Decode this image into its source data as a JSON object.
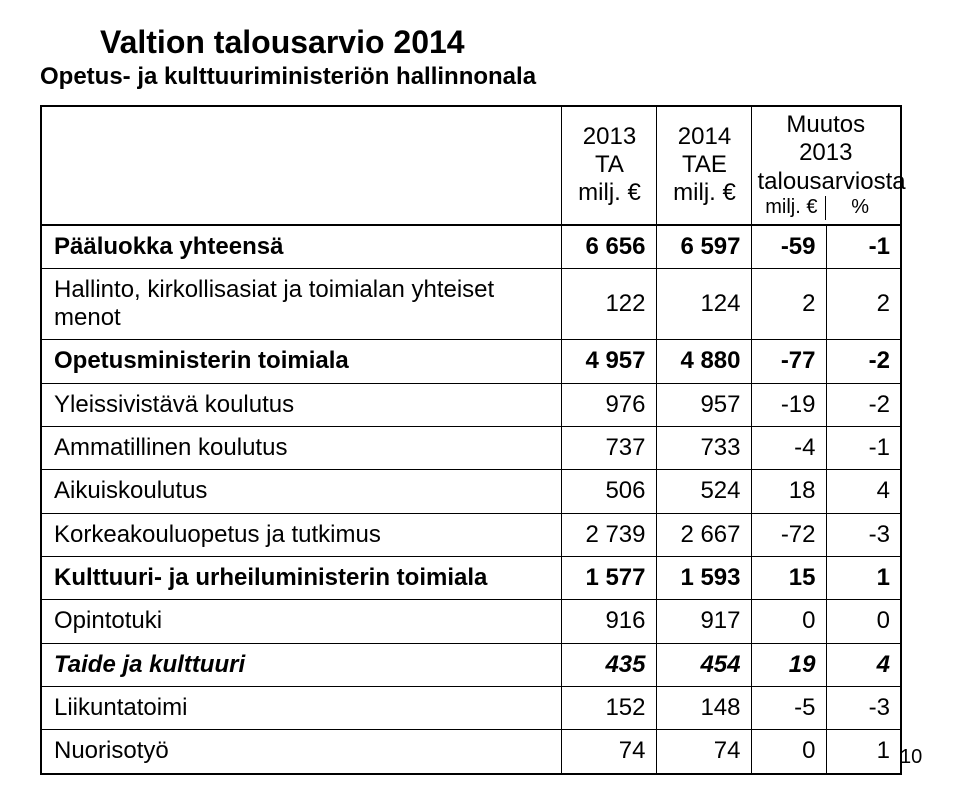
{
  "title": {
    "line1": "Valtion talousarvio 2014",
    "line2": "Opetus- ja kulttuuriministeriön hallinnonala",
    "font_size_pt": 28,
    "color": "#000000"
  },
  "table": {
    "header": {
      "col1_line1": "2013",
      "col1_line2": "TA",
      "col1_line3": "milj. €",
      "col2_line1": "2014",
      "col2_line2": "TAE",
      "col2_line3": "milj. €",
      "grp_line1": "Muutos 2013",
      "grp_line2": "talousarviosta",
      "grp_sub1": "milj. €",
      "grp_sub2": "%"
    },
    "rows": [
      {
        "name": "Pääluokka yhteensä",
        "v1": "6 656",
        "v2": "6 597",
        "d1": "-59",
        "d2": "-1",
        "style": "bold"
      },
      {
        "name": "Hallinto, kirkollisasiat ja toimialan yhteiset menot",
        "v1": "122",
        "v2": "124",
        "d1": "2",
        "d2": "2",
        "style": "normal"
      },
      {
        "name": "Opetusministerin toimiala",
        "v1": "4 957",
        "v2": "4 880",
        "d1": "-77",
        "d2": "-2",
        "style": "bold"
      },
      {
        "name": "Yleissivistävä koulutus",
        "v1": "976",
        "v2": "957",
        "d1": "-19",
        "d2": "-2",
        "style": "normal"
      },
      {
        "name": "Ammatillinen koulutus",
        "v1": "737",
        "v2": "733",
        "d1": "-4",
        "d2": "-1",
        "style": "normal"
      },
      {
        "name": "Aikuiskoulutus",
        "v1": "506",
        "v2": "524",
        "d1": "18",
        "d2": "4",
        "style": "normal"
      },
      {
        "name": "Korkeakouluopetus ja tutkimus",
        "v1": "2 739",
        "v2": "2 667",
        "d1": "-72",
        "d2": "-3",
        "style": "normal"
      },
      {
        "name": "Kulttuuri- ja urheiluministerin toimiala",
        "v1": "1 577",
        "v2": "1 593",
        "d1": "15",
        "d2": "1",
        "style": "bold"
      },
      {
        "name": "Opintotuki",
        "v1": "916",
        "v2": "917",
        "d1": "0",
        "d2": "0",
        "style": "normal"
      },
      {
        "name": "Taide ja kulttuuri",
        "v1": "435",
        "v2": "454",
        "d1": "19",
        "d2": "4",
        "style": "ital"
      },
      {
        "name": "Liikuntatoimi",
        "v1": "152",
        "v2": "148",
        "d1": "-5",
        "d2": "-3",
        "style": "normal"
      },
      {
        "name": "Nuorisotyö",
        "v1": "74",
        "v2": "74",
        "d1": "0",
        "d2": "1",
        "style": "normal"
      }
    ],
    "colors": {
      "text": "#000000",
      "border": "#000000",
      "background": "#ffffff"
    },
    "font_size_body_pt": 24,
    "font_size_header_pt": 20
  },
  "page_number": "10"
}
